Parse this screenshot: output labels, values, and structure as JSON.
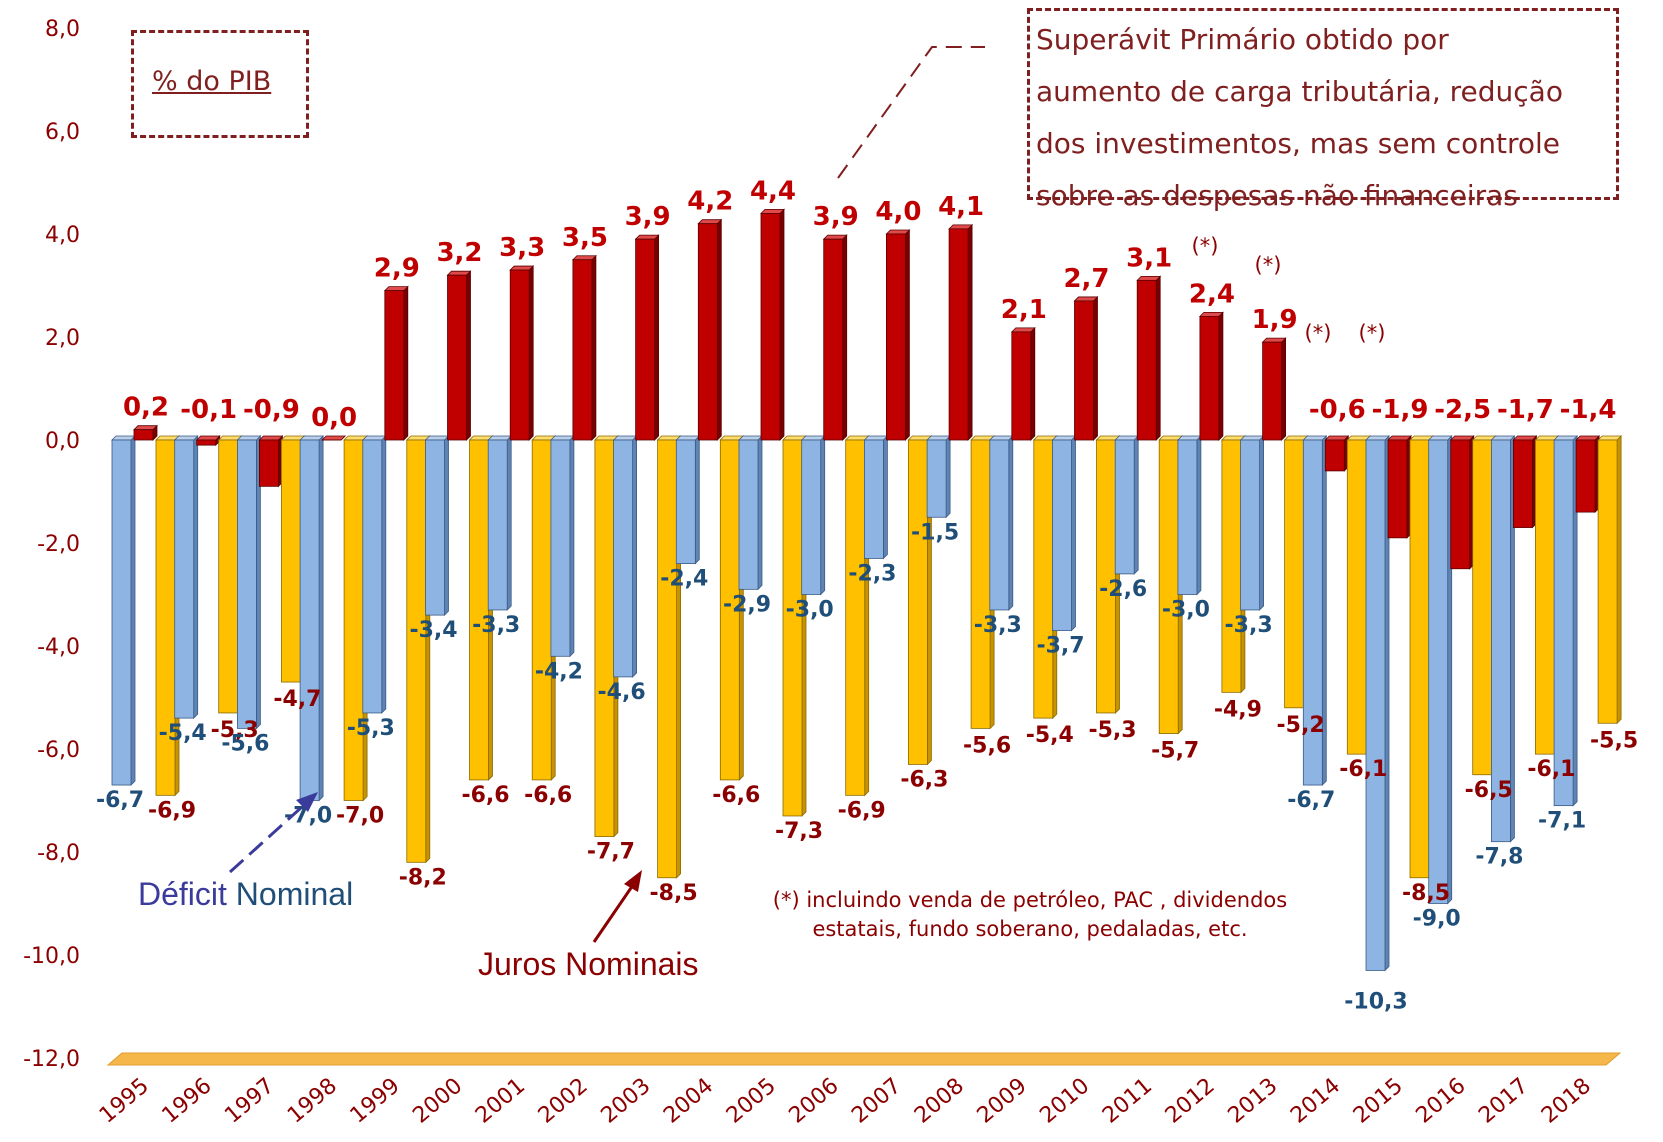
{
  "chart_data": {
    "type": "bar",
    "unit_label": "% do PIB",
    "categories": [
      "1995",
      "1996",
      "1997",
      "1998",
      "1999",
      "2000",
      "2001",
      "2002",
      "2003",
      "2004",
      "2005",
      "2006",
      "2007",
      "2008",
      "2009",
      "2010",
      "2011",
      "2012",
      "2013",
      "2014",
      "2015",
      "2016",
      "2017",
      "2018"
    ],
    "series": [
      {
        "name": "Déficit Nominal",
        "color": "#8eb4e3",
        "label_color": "#1f4e79",
        "values": [
          -6.7,
          -5.4,
          -5.6,
          -7.0,
          -5.3,
          -3.4,
          -3.3,
          -4.2,
          -4.6,
          -2.4,
          -2.9,
          -3.0,
          -2.3,
          -1.5,
          -3.3,
          -3.7,
          -2.6,
          -3.0,
          -3.3,
          -6.7,
          -10.3,
          -9.0,
          -7.8,
          -7.1
        ]
      },
      {
        "name": "Superávit Primário",
        "color": "#c00000",
        "label_color": "#c00000",
        "values": [
          0.2,
          -0.1,
          -0.9,
          0.0,
          2.9,
          3.2,
          3.3,
          3.5,
          3.9,
          4.2,
          4.4,
          3.9,
          4.0,
          4.1,
          2.1,
          2.7,
          3.1,
          2.4,
          1.9,
          -0.6,
          -1.9,
          -2.5,
          -1.7,
          -1.4
        ]
      },
      {
        "name": "Juros Nominais",
        "color": "#ffc000",
        "label_color": "#8b0000",
        "values": [
          -6.9,
          -5.3,
          -4.7,
          -7.0,
          -8.2,
          -6.6,
          -6.6,
          -7.7,
          -8.5,
          -6.6,
          -7.3,
          -6.9,
          -6.3,
          -5.6,
          -5.4,
          -5.3,
          -5.7,
          -4.9,
          -5.2,
          -6.1,
          -8.5,
          -6.5,
          -6.1,
          -5.5
        ]
      }
    ],
    "value_labels": {
      "deficit": [
        "-6,7",
        "-5,4",
        "-5,6",
        "-7,0",
        "-5,3",
        "-3,4",
        "-3,3",
        "-4,2",
        "-4,6",
        "-2,4",
        "-2,9",
        "-3,0",
        "-2,3",
        "-1,5",
        "-3,3",
        "-3,7",
        "-2,6",
        "-3,0",
        "-3,3",
        "-6,7",
        "-10,3",
        "-9,0",
        "-7,8",
        "-7,1"
      ],
      "primario": [
        "0,2",
        "-0,1",
        "-0,9",
        "0,0",
        "2,9",
        "3,2",
        "3,3",
        "3,5",
        "3,9",
        "4,2",
        "4,4",
        "3,9",
        "4,0",
        "4,1",
        "2,1",
        "2,7",
        "3,1",
        "2,4",
        "1,9",
        "-0,6",
        "-1,9",
        "-2,5",
        "-1,7",
        "-1,4"
      ],
      "juros": [
        "-6,9",
        "-5,3",
        "-4,7",
        "-7,0",
        "-8,2",
        "-6,6",
        "-6,6",
        "-7,7",
        "-8,5",
        "-6,6",
        "-7,3",
        "-6,9",
        "-6,3",
        "-5,6",
        "-5,4",
        "-5,3",
        "-5,7",
        "-4,9",
        "-5,2",
        "-6,1",
        "-8,5",
        "-6,5",
        "-6,1",
        "-5,5"
      ]
    },
    "yticks": [
      "8,0",
      "6,0",
      "4,0",
      "2,0",
      "0,0",
      "-2,0",
      "-4,0",
      "-6,0",
      "-8,0",
      "-10,0",
      "-12,0"
    ],
    "ylim": [
      -12,
      8
    ],
    "asterisk_years": [
      "2012",
      "2013",
      "2014",
      "2015"
    ],
    "asterisk_text": "(*)",
    "grid": false,
    "legend": "none"
  },
  "annotations": {
    "unit_box": "% do PIB",
    "note_box_lines": [
      "Superávit Primário obtido por",
      "aumento de carga tributária, redução",
      "dos investimentos, mas sem controle",
      "sobre as despesas não financeiras"
    ],
    "deficit_label_a": "Déficit",
    "deficit_label_b": " Nominal",
    "juros_label": "Juros Nominais",
    "footnote_line1": "(*) incluindo venda de petróleo, PAC , dividendos",
    "footnote_line2": "estatais, fundo soberano, pedaladas, etc."
  }
}
